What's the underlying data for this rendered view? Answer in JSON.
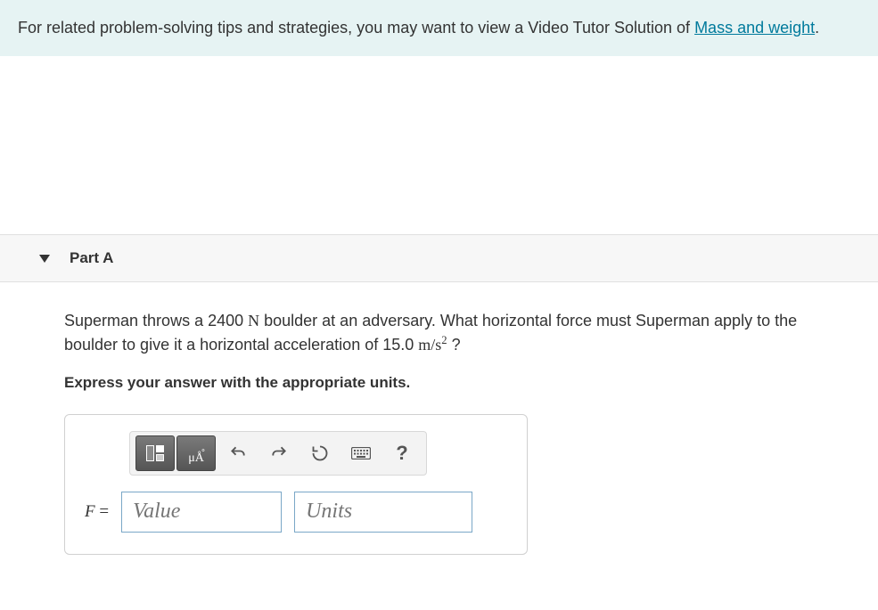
{
  "hint": {
    "text_before_link": "For related problem-solving tips and strategies, you may want to view a Video Tutor Solution of ",
    "link_text": "Mass and weight",
    "text_after_link": "."
  },
  "part": {
    "label": "Part A",
    "question_html": "Superman throws a 2400 <span class='mathrm'>N</span> boulder at an adversary. What horizontal force must Superman apply to the boulder to give it a horizontal acceleration of 15.0 <span class='mathrm'>m/s<span class='sup2'>2</span></span> ?",
    "instruction": "Express your answer with the appropriate units."
  },
  "answer": {
    "variable": "F",
    "equals": "=",
    "value_placeholder": "Value",
    "units_placeholder": "Units"
  },
  "toolbar": {
    "template_button": "template-button",
    "units_button": "μÅ",
    "undo": "↶",
    "redo": "↷",
    "reset": "↻",
    "keyboard": "⌨",
    "help": "?"
  },
  "colors": {
    "hint_bg": "#e6f3f3",
    "link": "#007a9c",
    "input_border": "#7aa7c7",
    "placeholder": "#888888"
  }
}
